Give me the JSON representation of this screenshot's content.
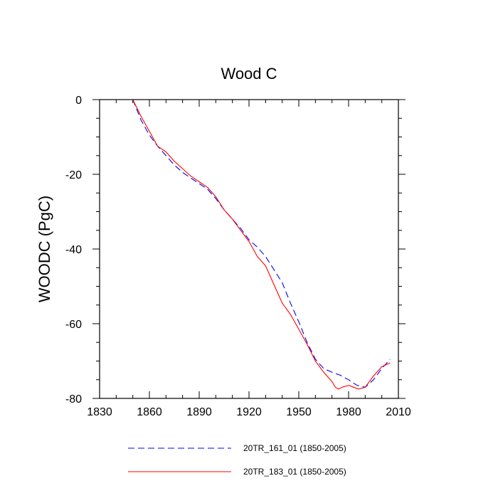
{
  "chart_data": {
    "type": "line",
    "title": "Wood C",
    "xlabel": "",
    "ylabel": "WOODC  (PgC)",
    "xlim": [
      1830,
      2010
    ],
    "ylim": [
      -80,
      0
    ],
    "x_ticks": [
      1830,
      1860,
      1890,
      1920,
      1950,
      1980,
      2010
    ],
    "y_ticks": [
      0,
      -20,
      -40,
      -60,
      -80
    ],
    "x_minor_step": 10,
    "y_minor_step": 5,
    "grid": false,
    "legend_position": "bottom",
    "series": [
      {
        "name": "20TR_161_01 (1850-2005)",
        "color": "#0000ff",
        "style": "dashed",
        "x": [
          1850,
          1855,
          1860,
          1865,
          1870,
          1875,
          1880,
          1885,
          1890,
          1895,
          1900,
          1905,
          1910,
          1915,
          1920,
          1925,
          1930,
          1935,
          1940,
          1945,
          1950,
          1955,
          1960,
          1965,
          1970,
          1975,
          1980,
          1985,
          1990,
          1995,
          2000,
          2005
        ],
        "y": [
          0,
          -5.5,
          -9.5,
          -12.5,
          -15,
          -17.5,
          -19.5,
          -21,
          -22.5,
          -24,
          -26.5,
          -29.5,
          -32,
          -34.5,
          -37.5,
          -39.5,
          -42,
          -45.5,
          -49,
          -54.5,
          -59.5,
          -65,
          -69.5,
          -72,
          -73,
          -73.8,
          -75,
          -76.5,
          -77,
          -75,
          -72,
          -69.5
        ]
      },
      {
        "name": "20TR_183_01 (1850-2005)",
        "color": "#ff0000",
        "style": "solid",
        "x": [
          1850,
          1855,
          1860,
          1865,
          1870,
          1875,
          1880,
          1885,
          1890,
          1895,
          1900,
          1905,
          1910,
          1915,
          1920,
          1925,
          1930,
          1935,
          1940,
          1945,
          1950,
          1955,
          1960,
          1965,
          1970,
          1972,
          1974,
          1976,
          1980,
          1983,
          1986,
          1990,
          1995,
          2000,
          2005
        ],
        "y": [
          0,
          -4.5,
          -8.5,
          -12.5,
          -14,
          -16.5,
          -18.5,
          -20.5,
          -22,
          -23.5,
          -26,
          -29.5,
          -32,
          -35,
          -38,
          -42,
          -44.5,
          -49.5,
          -54.5,
          -57.5,
          -61.5,
          -65.5,
          -70,
          -73,
          -75.5,
          -77,
          -77.5,
          -77,
          -76.5,
          -77,
          -77.5,
          -77,
          -74,
          -71.5,
          -70.5
        ]
      }
    ]
  }
}
